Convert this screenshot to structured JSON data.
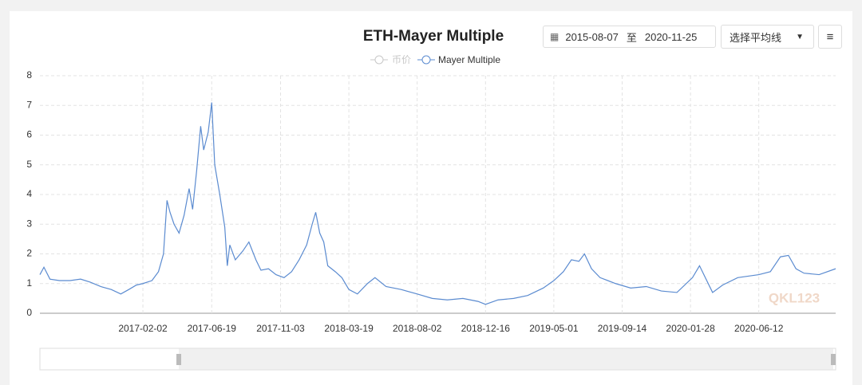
{
  "chart_data": {
    "type": "line",
    "title": "ETH-Mayer Multiple",
    "hidden_series": [
      {
        "name": "币价",
        "color": "#c8c8c8"
      }
    ],
    "x": [
      "2016-07-12",
      "2016-07-20",
      "2016-08-01",
      "2016-08-20",
      "2016-09-10",
      "2016-10-01",
      "2016-10-20",
      "2016-11-10",
      "2016-12-01",
      "2016-12-20",
      "2017-01-05",
      "2017-01-20",
      "2017-02-02",
      "2017-02-20",
      "2017-03-05",
      "2017-03-15",
      "2017-03-22",
      "2017-03-28",
      "2017-04-05",
      "2017-04-15",
      "2017-04-25",
      "2017-05-05",
      "2017-05-12",
      "2017-05-20",
      "2017-05-28",
      "2017-06-03",
      "2017-06-12",
      "2017-06-19",
      "2017-06-25",
      "2017-07-05",
      "2017-07-15",
      "2017-07-20",
      "2017-07-25",
      "2017-08-05",
      "2017-08-20",
      "2017-09-01",
      "2017-09-15",
      "2017-09-25",
      "2017-10-10",
      "2017-10-25",
      "2017-11-10",
      "2017-11-25",
      "2017-12-10",
      "2017-12-25",
      "2018-01-05",
      "2018-01-12",
      "2018-01-20",
      "2018-01-28",
      "2018-02-05",
      "2018-02-20",
      "2018-03-05",
      "2018-03-19",
      "2018-04-05",
      "2018-04-25",
      "2018-05-10",
      "2018-06-01",
      "2018-07-01",
      "2018-08-02",
      "2018-09-01",
      "2018-10-01",
      "2018-11-01",
      "2018-12-01",
      "2018-12-16",
      "2019-01-10",
      "2019-02-10",
      "2019-03-10",
      "2019-04-10",
      "2019-05-01",
      "2019-05-20",
      "2019-06-05",
      "2019-06-20",
      "2019-07-01",
      "2019-07-15",
      "2019-08-01",
      "2019-09-01",
      "2019-10-01",
      "2019-11-01",
      "2019-12-01",
      "2020-01-01",
      "2020-02-01",
      "2020-02-15",
      "2020-03-12",
      "2020-04-01",
      "2020-05-01",
      "2020-06-12",
      "2020-07-05",
      "2020-07-25",
      "2020-08-10",
      "2020-08-25",
      "2020-09-10",
      "2020-10-10",
      "2020-11-12"
    ],
    "series": [
      {
        "name": "Mayer Multiple",
        "color": "#5b8bd0",
        "values": [
          1.3,
          1.55,
          1.15,
          1.1,
          1.1,
          1.15,
          1.05,
          0.9,
          0.8,
          0.65,
          0.8,
          0.95,
          1.0,
          1.1,
          1.4,
          2.0,
          3.8,
          3.4,
          3.0,
          2.7,
          3.3,
          4.2,
          3.5,
          4.8,
          6.3,
          5.5,
          6.1,
          7.1,
          5.0,
          4.0,
          2.9,
          1.6,
          2.3,
          1.8,
          2.1,
          2.4,
          1.8,
          1.45,
          1.5,
          1.3,
          1.2,
          1.4,
          1.8,
          2.3,
          3.0,
          3.4,
          2.7,
          2.4,
          1.6,
          1.4,
          1.2,
          0.8,
          0.65,
          1.0,
          1.2,
          0.9,
          0.8,
          0.65,
          0.5,
          0.45,
          0.5,
          0.4,
          0.3,
          0.45,
          0.5,
          0.6,
          0.85,
          1.1,
          1.4,
          1.8,
          1.75,
          2.0,
          1.5,
          1.2,
          1.0,
          0.85,
          0.9,
          0.75,
          0.7,
          1.2,
          1.6,
          0.7,
          0.95,
          1.2,
          1.3,
          1.4,
          1.9,
          1.95,
          1.5,
          1.35,
          1.3,
          1.5
        ]
      }
    ],
    "xlim": [
      "2016-07-12",
      "2020-11-12"
    ],
    "xticks": [
      "2017-02-02",
      "2017-06-19",
      "2017-11-03",
      "2018-03-19",
      "2018-08-02",
      "2018-12-16",
      "2019-05-01",
      "2019-09-14",
      "2020-01-28",
      "2020-06-12"
    ],
    "ylim": [
      0,
      8
    ],
    "yticks": [
      0,
      1,
      2,
      3,
      4,
      5,
      6,
      7,
      8
    ],
    "grid": true,
    "watermark": "QKL123"
  },
  "controls": {
    "start_date": "2015-08-07",
    "range_separator": "至",
    "end_date": "2020-11-25",
    "average_select": "选择平均线"
  }
}
